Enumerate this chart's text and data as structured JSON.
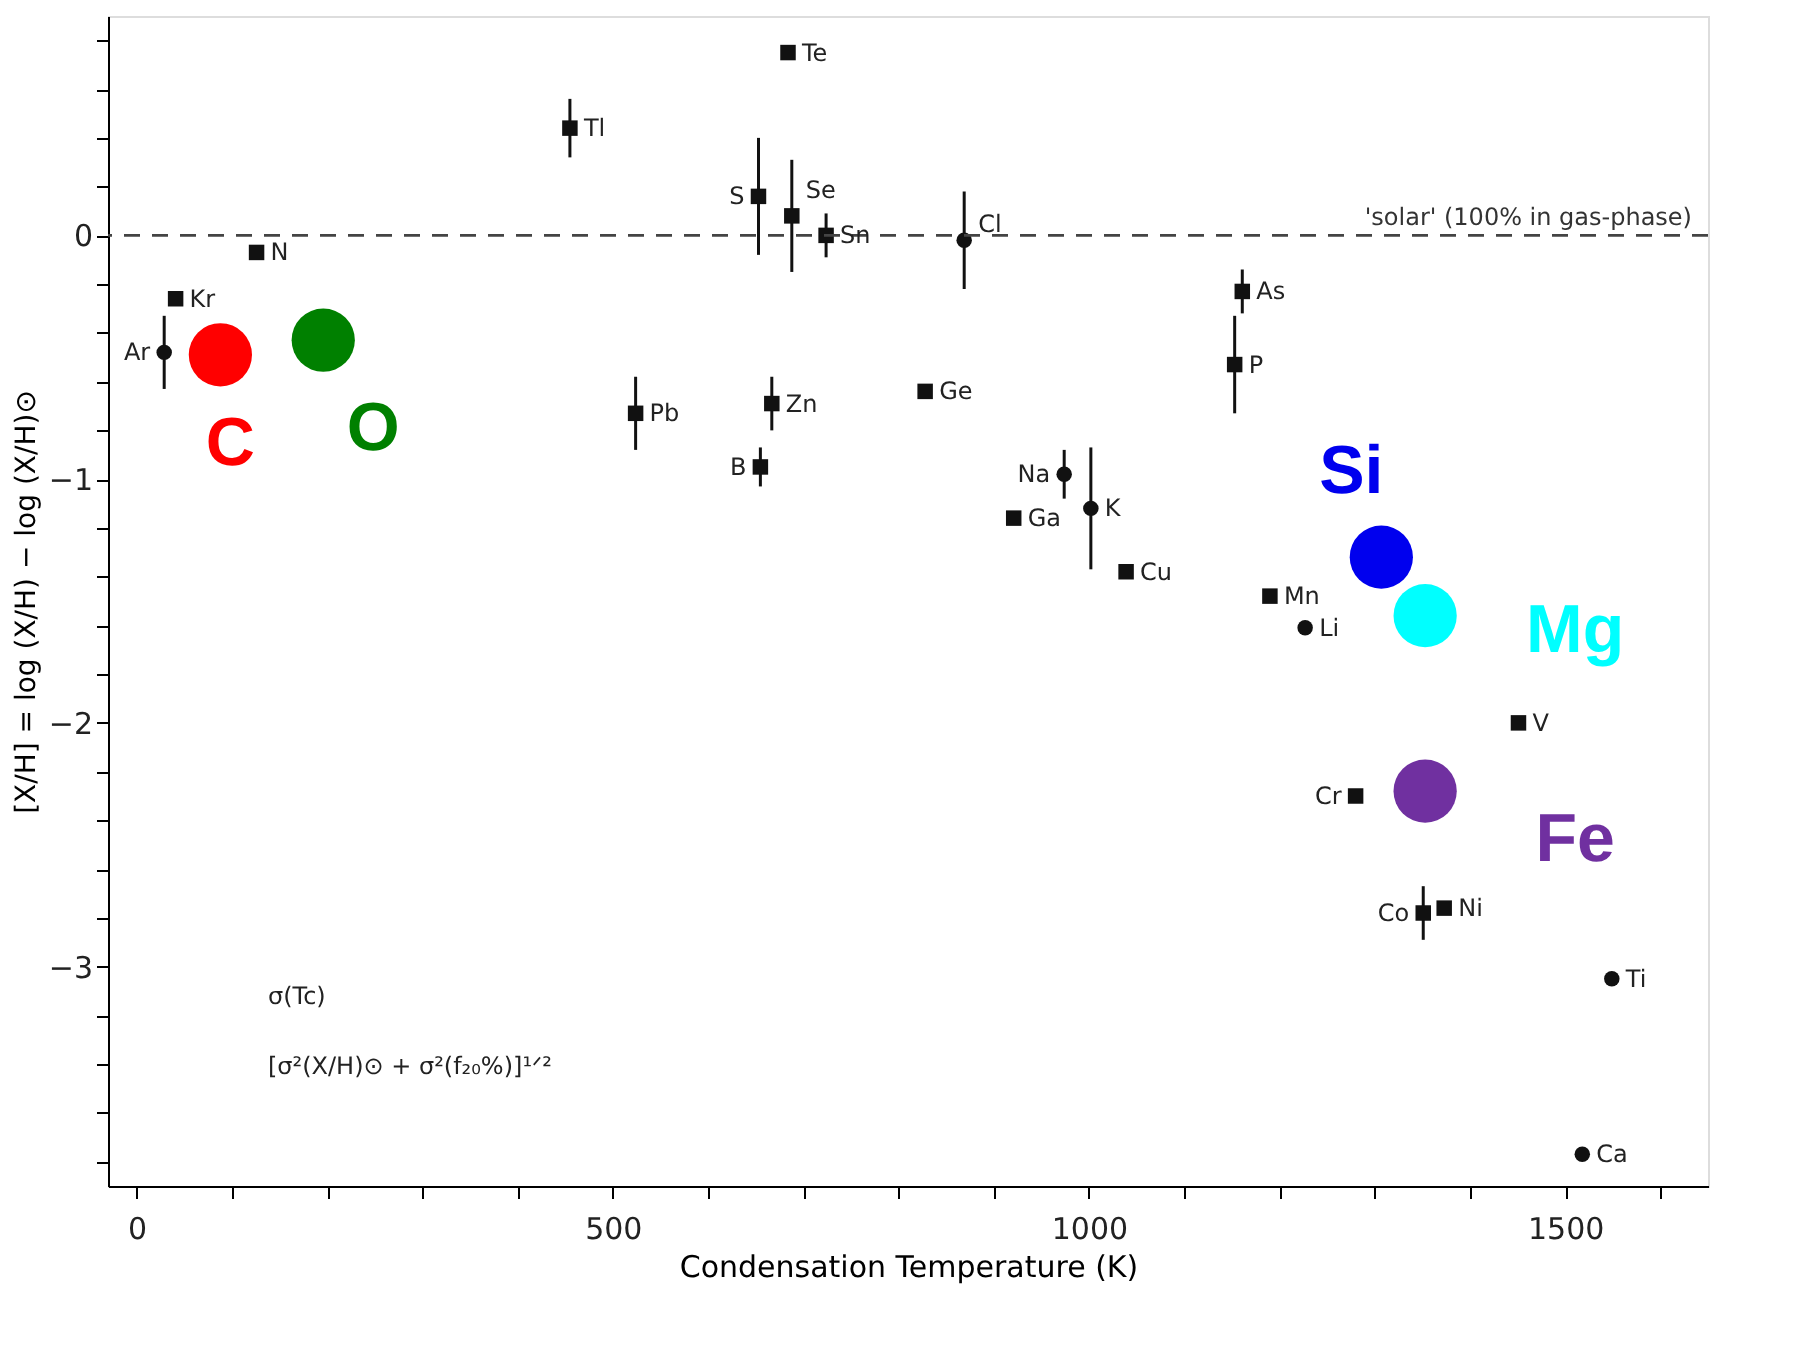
{
  "chart_data": {
    "type": "scatter",
    "xlabel": "Condensation Temperature (K)",
    "ylabel": "[X/H] = log (X/H) − log (X/H)⊙",
    "xlim": [
      -30,
      1650
    ],
    "ylim": [
      -3.9,
      0.9
    ],
    "xticks": [
      0,
      {
        "value": 100,
        "label": null
      },
      {
        "value": 200,
        "label": null
      },
      {
        "value": 300,
        "label": null
      },
      {
        "value": 400,
        "label": null
      },
      500,
      {
        "value": 600,
        "label": null
      },
      {
        "value": 700,
        "label": null
      },
      {
        "value": 800,
        "label": null
      },
      {
        "value": 900,
        "label": null
      },
      1000,
      {
        "value": 1100,
        "label": null
      },
      {
        "value": 1200,
        "label": null
      },
      {
        "value": 1300,
        "label": null
      },
      {
        "value": 1400,
        "label": null
      },
      1500,
      {
        "value": 1600,
        "label": null
      }
    ],
    "yticks": [
      {
        "value": -3.8,
        "label": null
      },
      {
        "value": -3.6,
        "label": null
      },
      {
        "value": -3.4,
        "label": null
      },
      {
        "value": -3.2,
        "label": null
      },
      -3,
      {
        "value": -2.8,
        "label": null
      },
      {
        "value": -2.6,
        "label": null
      },
      {
        "value": -2.4,
        "label": null
      },
      {
        "value": -2.2,
        "label": null
      },
      -2,
      {
        "value": -1.8,
        "label": null
      },
      {
        "value": -1.6,
        "label": null
      },
      {
        "value": -1.4,
        "label": null
      },
      {
        "value": -1.2,
        "label": null
      },
      -1,
      {
        "value": -0.8,
        "label": null
      },
      {
        "value": -0.6,
        "label": null
      },
      {
        "value": -0.4,
        "label": null
      },
      {
        "value": -0.2,
        "label": null
      },
      0,
      {
        "value": 0.2,
        "label": null
      },
      {
        "value": 0.4,
        "label": null
      },
      {
        "value": 0.6,
        "label": null
      },
      {
        "value": 0.8,
        "label": null
      }
    ],
    "grid": false,
    "ref_lines": [
      {
        "axis": "y",
        "value": 0,
        "label": "'solar' (100% in gas-phase)",
        "line_style": "dashed",
        "color": "#444444"
      }
    ],
    "series": [
      {
        "marker": "square",
        "color": "#111111",
        "x": [
          41,
          126,
          455,
          524,
          684,
          653,
          688,
          724,
          667,
          655,
          828,
          1161,
          1153,
          921,
          1039,
          1190,
          1451,
          1280,
          1351,
          1373
        ],
        "values": [
          -0.26,
          -0.07,
          0.44,
          -0.73,
          0.75,
          0.16,
          0.08,
          0.0,
          -0.69,
          -0.95,
          -0.64,
          -0.23,
          -0.53,
          -1.16,
          -1.38,
          -1.48,
          -2.0,
          -2.3,
          -2.78,
          -2.76
        ],
        "errors": [
          null,
          null,
          0.12,
          0.15,
          null,
          0.24,
          0.23,
          0.09,
          0.11,
          0.08,
          null,
          0.09,
          0.2,
          null,
          null,
          null,
          null,
          null,
          0.11,
          null
        ]
      },
      {
        "marker": "circle",
        "color": "#111111",
        "x": [
          29,
          869,
          974,
          1002,
          1227,
          1549,
          1518
        ],
        "values": [
          -0.48,
          -0.02,
          -0.98,
          -1.12,
          -1.61,
          -3.05,
          -3.77
        ],
        "errors": [
          0.15,
          0.2,
          0.1,
          0.25,
          null,
          null,
          null
        ]
      },
      {
        "marker": "circle",
        "name": "C",
        "color": "#ff0000",
        "x": [
          88
        ],
        "values": [
          -0.49
        ]
      },
      {
        "marker": "circle",
        "name": "O",
        "color": "#008000",
        "x": [
          196
        ],
        "values": [
          -0.43
        ]
      },
      {
        "marker": "circle",
        "name": "Si",
        "color": "#0000ee",
        "x": [
          1307
        ],
        "values": [
          -1.32
        ]
      },
      {
        "marker": "circle",
        "name": "Mg",
        "color": "#00ffff",
        "x": [
          1353
        ],
        "values": [
          -1.56
        ]
      },
      {
        "marker": "circle",
        "name": "Fe",
        "color": "#7030a0",
        "x": [
          1353
        ],
        "values": [
          -2.28
        ]
      }
    ],
    "annotations": [
      "σ(Tc)",
      "[σ²(X/H)⊙ + σ²(f₂₀%)]¹ᐟ²",
      {
        "text": "Ar",
        "x": 29,
        "y": -0.48
      },
      {
        "text": "Kr",
        "x": 41,
        "y": -0.26
      },
      {
        "text": "N",
        "x": 126,
        "y": -0.07
      },
      {
        "text": "Tl",
        "x": 455,
        "y": 0.44
      },
      {
        "text": "Pb",
        "x": 524,
        "y": -0.73
      },
      {
        "text": "Te",
        "x": 684,
        "y": 0.75
      },
      {
        "text": "S",
        "x": 653,
        "y": 0.16
      },
      {
        "text": "Se",
        "x": 688,
        "y": 0.08
      },
      {
        "text": "Sn",
        "x": 724,
        "y": 0.0
      },
      {
        "text": "Zn",
        "x": 667,
        "y": -0.69
      },
      {
        "text": "B",
        "x": 655,
        "y": -0.95
      },
      {
        "text": "Cl",
        "x": 869,
        "y": -0.02
      },
      {
        "text": "Ge",
        "x": 828,
        "y": -0.64
      },
      {
        "text": "As",
        "x": 1161,
        "y": -0.23
      },
      {
        "text": "P",
        "x": 1153,
        "y": -0.53
      },
      {
        "text": "Na",
        "x": 974,
        "y": -0.98
      },
      {
        "text": "K",
        "x": 1002,
        "y": -1.12
      },
      {
        "text": "Ga",
        "x": 921,
        "y": -1.16
      },
      {
        "text": "Cu",
        "x": 1039,
        "y": -1.38
      },
      {
        "text": "Mn",
        "x": 1190,
        "y": -1.48
      },
      {
        "text": "Li",
        "x": 1227,
        "y": -1.61
      },
      {
        "text": "V",
        "x": 1451,
        "y": -2.0
      },
      {
        "text": "Cr",
        "x": 1280,
        "y": -2.3
      },
      {
        "text": "Co",
        "x": 1351,
        "y": -2.78
      },
      {
        "text": "Ni",
        "x": 1373,
        "y": -2.76
      },
      {
        "text": "Ti",
        "x": 1549,
        "y": -3.05
      },
      {
        "text": "Ca",
        "x": 1518,
        "y": -3.77
      }
    ]
  }
}
